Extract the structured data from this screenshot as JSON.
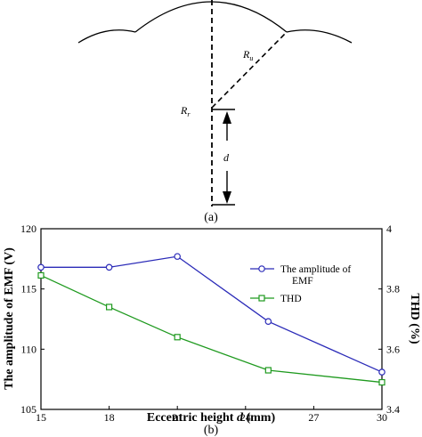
{
  "panel_a": {
    "label": "(a)",
    "r_u_label": "R",
    "r_u_sub": "u",
    "r_r_label": "R",
    "r_r_sub": "r",
    "d_label": "d"
  },
  "panel_b": {
    "label": "(b)"
  },
  "chart_data": {
    "type": "line",
    "xlabel_prefix": "Eccentric height ",
    "xlabel_var": "d",
    "xlabel_suffix": " (mm)",
    "ylabel": "The amplitude of EMF (V)",
    "y2label": "THD (%)",
    "xlim": [
      15,
      30
    ],
    "ylim": [
      105,
      120
    ],
    "y2lim": [
      3.4,
      4.0
    ],
    "xticks": [
      "15",
      "18",
      "21",
      "24",
      "27",
      "30"
    ],
    "yticks": [
      "105",
      "110",
      "115",
      "120"
    ],
    "y2ticks": [
      "3.4",
      "3.6",
      "3.8",
      "4"
    ],
    "grid": false,
    "legend_position": "top-right",
    "series": [
      {
        "name": "The amplitude of EMF",
        "axis": "left",
        "color": "#2b2bb8",
        "marker": "circle",
        "x": [
          15,
          18,
          21,
          25,
          30
        ],
        "y": [
          116.8,
          116.8,
          117.7,
          112.3,
          108.1
        ]
      },
      {
        "name": "THD",
        "axis": "right",
        "color": "#1f9a1f",
        "marker": "square",
        "x": [
          15,
          18,
          21,
          25,
          30
        ],
        "y": [
          3.845,
          3.74,
          3.64,
          3.53,
          3.49
        ]
      }
    ]
  }
}
